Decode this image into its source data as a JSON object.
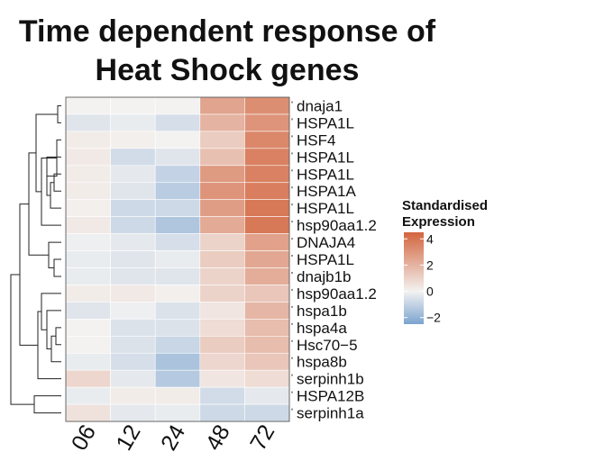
{
  "chart_data": {
    "type": "heatmap",
    "title_lines": [
      "Time dependent response of",
      "Heat Shock genes"
    ],
    "columns": [
      "06",
      "12",
      "24",
      "48",
      "72"
    ],
    "rows": [
      "dnaja1",
      "HSPA1L",
      "HSF4",
      "HSPA1L",
      "HSPA1L",
      "HSPA1A",
      "HSPA1L",
      "hsp90aa1.2",
      "DNAJA4",
      "HSPA1L",
      "dnajb1b",
      "hsp90aa1.2",
      "hspa1b",
      "hspa4a",
      "Hsc70−5",
      "hspa8b",
      "serpinh1b",
      "HSPA12B",
      "serpinh1a"
    ],
    "values": [
      [
        0.0,
        0.0,
        0.0,
        2.5,
        3.2
      ],
      [
        -0.4,
        -0.2,
        -0.6,
        2.0,
        3.0
      ],
      [
        0.2,
        0.1,
        0.0,
        1.2,
        3.4
      ],
      [
        0.3,
        -0.7,
        -0.4,
        1.6,
        3.6
      ],
      [
        0.2,
        -0.3,
        -1.0,
        2.8,
        3.6
      ],
      [
        0.2,
        -0.4,
        -1.2,
        3.0,
        3.7
      ],
      [
        0.1,
        -0.8,
        -0.8,
        2.7,
        3.9
      ],
      [
        0.3,
        -0.8,
        -1.4,
        2.3,
        3.9
      ],
      [
        -0.1,
        -0.3,
        -0.6,
        1.0,
        2.6
      ],
      [
        -0.2,
        -0.4,
        -0.2,
        1.2,
        2.4
      ],
      [
        -0.2,
        -0.4,
        -0.4,
        1.0,
        2.2
      ],
      [
        0.2,
        0.3,
        0.1,
        1.0,
        1.4
      ],
      [
        -0.4,
        -0.1,
        -0.5,
        0.4,
        1.9
      ],
      [
        0.0,
        -0.5,
        -0.5,
        0.7,
        1.7
      ],
      [
        0.0,
        -0.5,
        -0.9,
        1.2,
        1.7
      ],
      [
        -0.2,
        -0.6,
        -1.5,
        0.9,
        1.4
      ],
      [
        0.9,
        -0.3,
        -1.3,
        0.4,
        0.7
      ],
      [
        -0.2,
        0.2,
        0.2,
        -0.7,
        -0.3
      ],
      [
        0.5,
        -0.3,
        -0.2,
        -0.8,
        -0.8
      ]
    ],
    "color_scale": {
      "low": "#7ba3d0",
      "mid": "#f3f2f1",
      "high": "#d3653e",
      "range": [
        -2.5,
        4.5
      ]
    },
    "legend": {
      "title_lines": [
        "Standardised",
        "Expression"
      ],
      "ticks": [
        4,
        2,
        0,
        -2
      ],
      "tick_labels": [
        "4",
        "2",
        "0",
        "−2"
      ],
      "placement": "right"
    },
    "dendrogram": "row"
  }
}
